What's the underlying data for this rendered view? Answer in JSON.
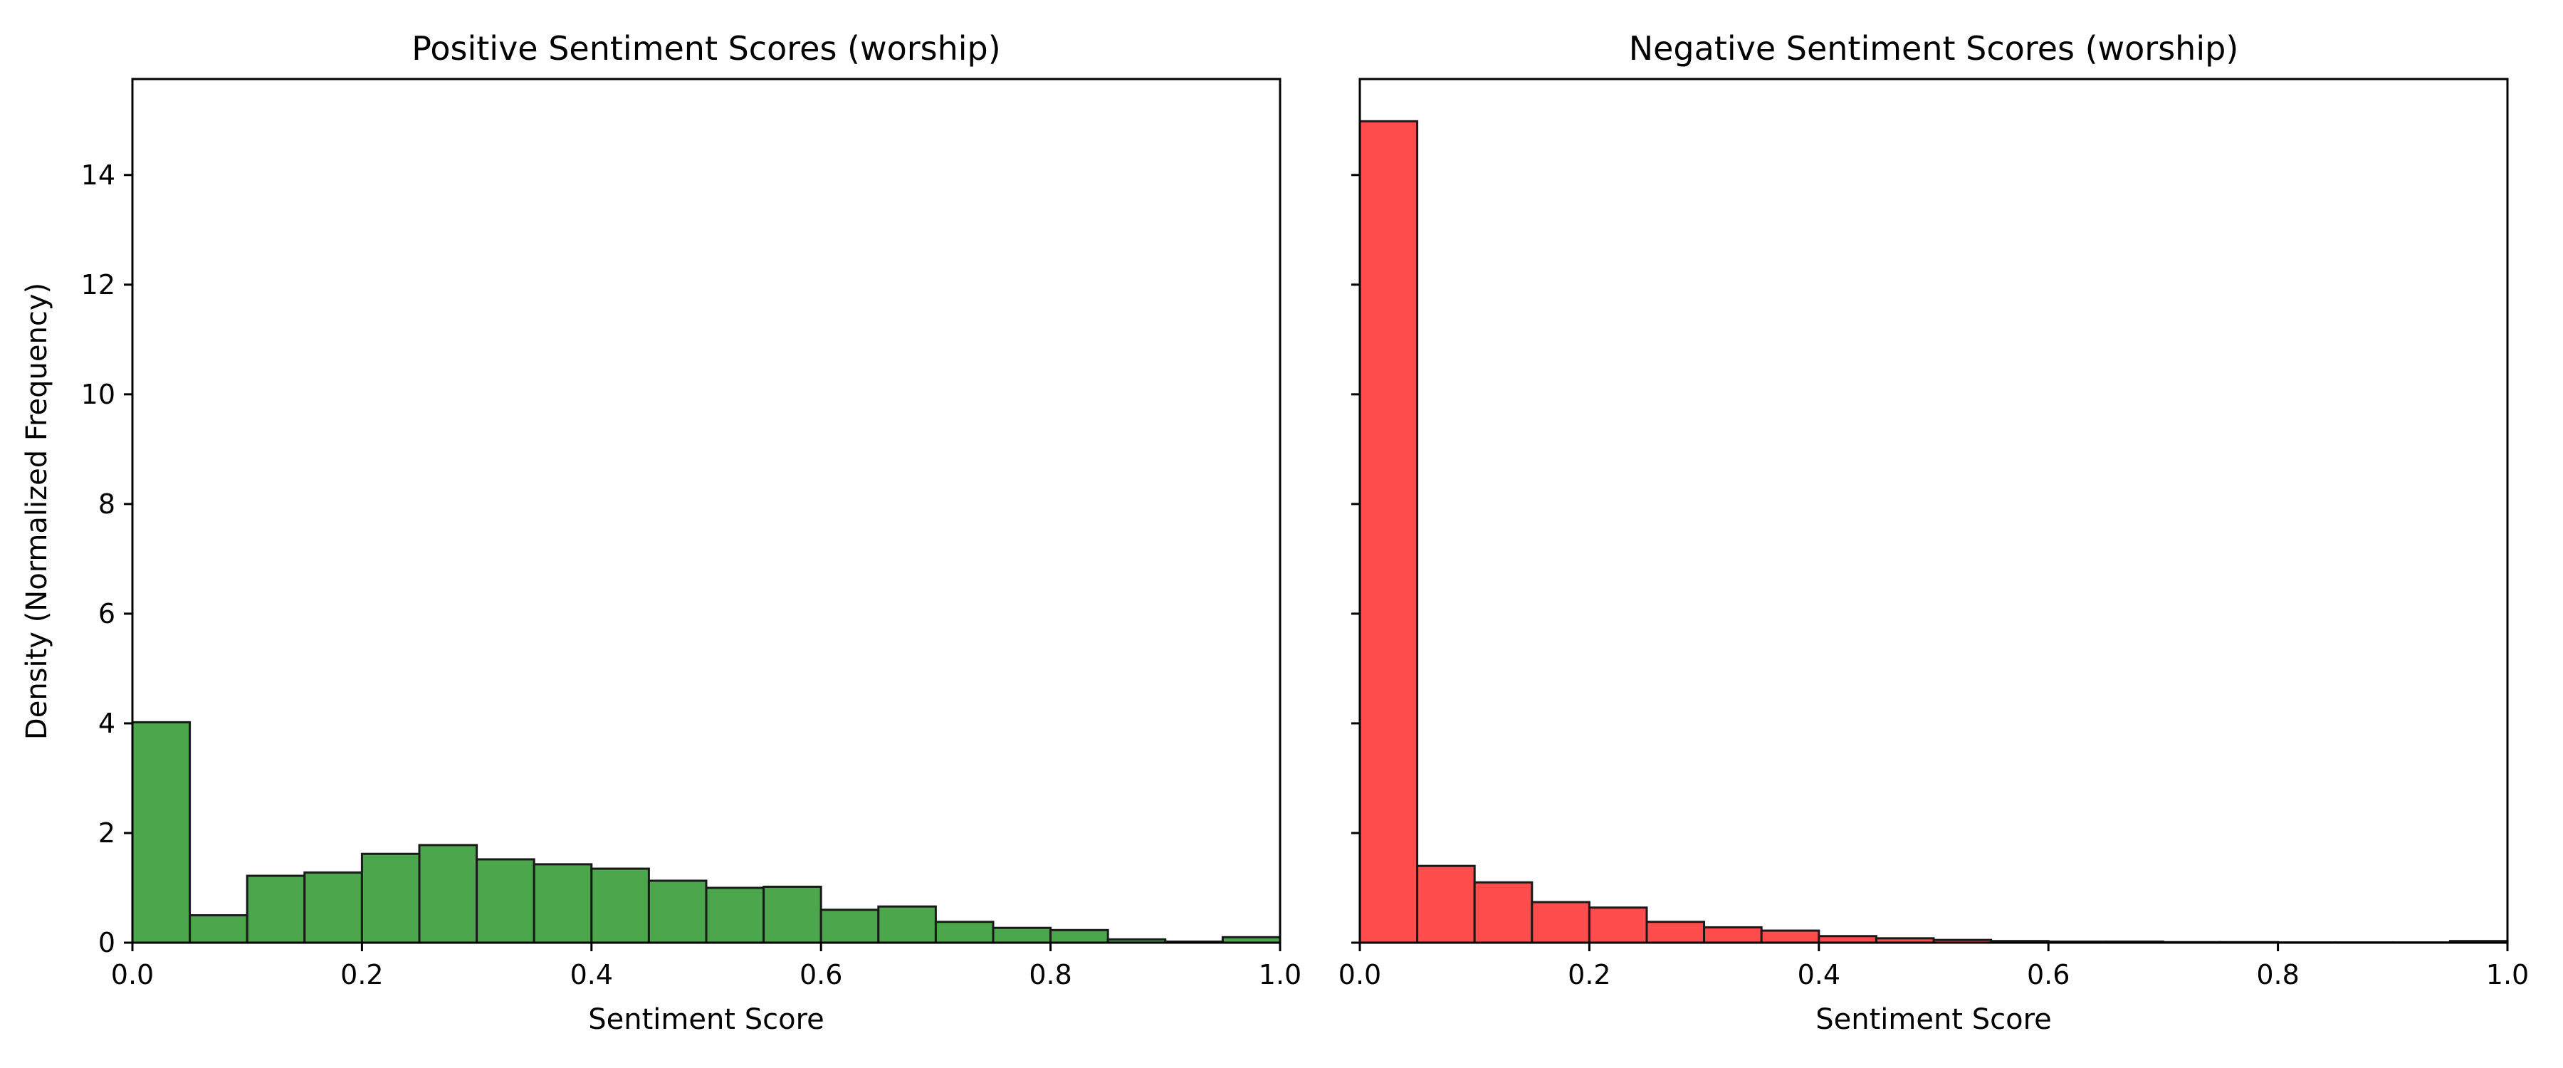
{
  "figure": {
    "ylabel": "Density (Normalized Frequency)"
  },
  "chart_data": [
    {
      "type": "bar",
      "title": "Positive Sentiment Scores (worship)",
      "xlabel": "Sentiment Score",
      "ylabel": "Density (Normalized Frequency)",
      "xlim": [
        0,
        1
      ],
      "ylim": [
        0,
        15.75
      ],
      "xticks": [
        "0.0",
        "0.2",
        "0.4",
        "0.6",
        "0.8",
        "1.0"
      ],
      "yticks": [
        "0",
        "2",
        "4",
        "6",
        "8",
        "10",
        "12",
        "14"
      ],
      "bin_edges": [
        0,
        0.05,
        0.1,
        0.15,
        0.2,
        0.25,
        0.3,
        0.35,
        0.4,
        0.45,
        0.5,
        0.55,
        0.6,
        0.65,
        0.7,
        0.75,
        0.8,
        0.85,
        0.9,
        0.95,
        1.0
      ],
      "values": [
        4.02,
        0.5,
        1.22,
        1.28,
        1.62,
        1.78,
        1.52,
        1.43,
        1.35,
        1.13,
        1.0,
        1.02,
        0.6,
        0.66,
        0.38,
        0.27,
        0.23,
        0.06,
        0.02,
        0.1
      ],
      "color": "#4ca64c",
      "edgecolor": "#1a1a1a",
      "grid": false
    },
    {
      "type": "bar",
      "title": "Negative Sentiment Scores (worship)",
      "xlabel": "Sentiment Score",
      "ylabel": "",
      "xlim": [
        0,
        1
      ],
      "ylim": [
        0,
        15.75
      ],
      "xticks": [
        "0.0",
        "0.2",
        "0.4",
        "0.6",
        "0.8",
        "1.0"
      ],
      "yticks": [],
      "bin_edges": [
        0,
        0.05,
        0.1,
        0.15,
        0.2,
        0.25,
        0.3,
        0.35,
        0.4,
        0.45,
        0.5,
        0.55,
        0.6,
        0.65,
        0.7,
        0.75,
        0.8,
        0.85,
        0.9,
        0.95,
        1.0
      ],
      "values": [
        14.98,
        1.4,
        1.1,
        0.74,
        0.64,
        0.38,
        0.28,
        0.22,
        0.12,
        0.08,
        0.05,
        0.03,
        0.02,
        0.02,
        0.01,
        0.01,
        0.005,
        0.005,
        0.005,
        0.03
      ],
      "color": "#ff4d4d",
      "edgecolor": "#1a1a1a",
      "grid": false
    }
  ]
}
